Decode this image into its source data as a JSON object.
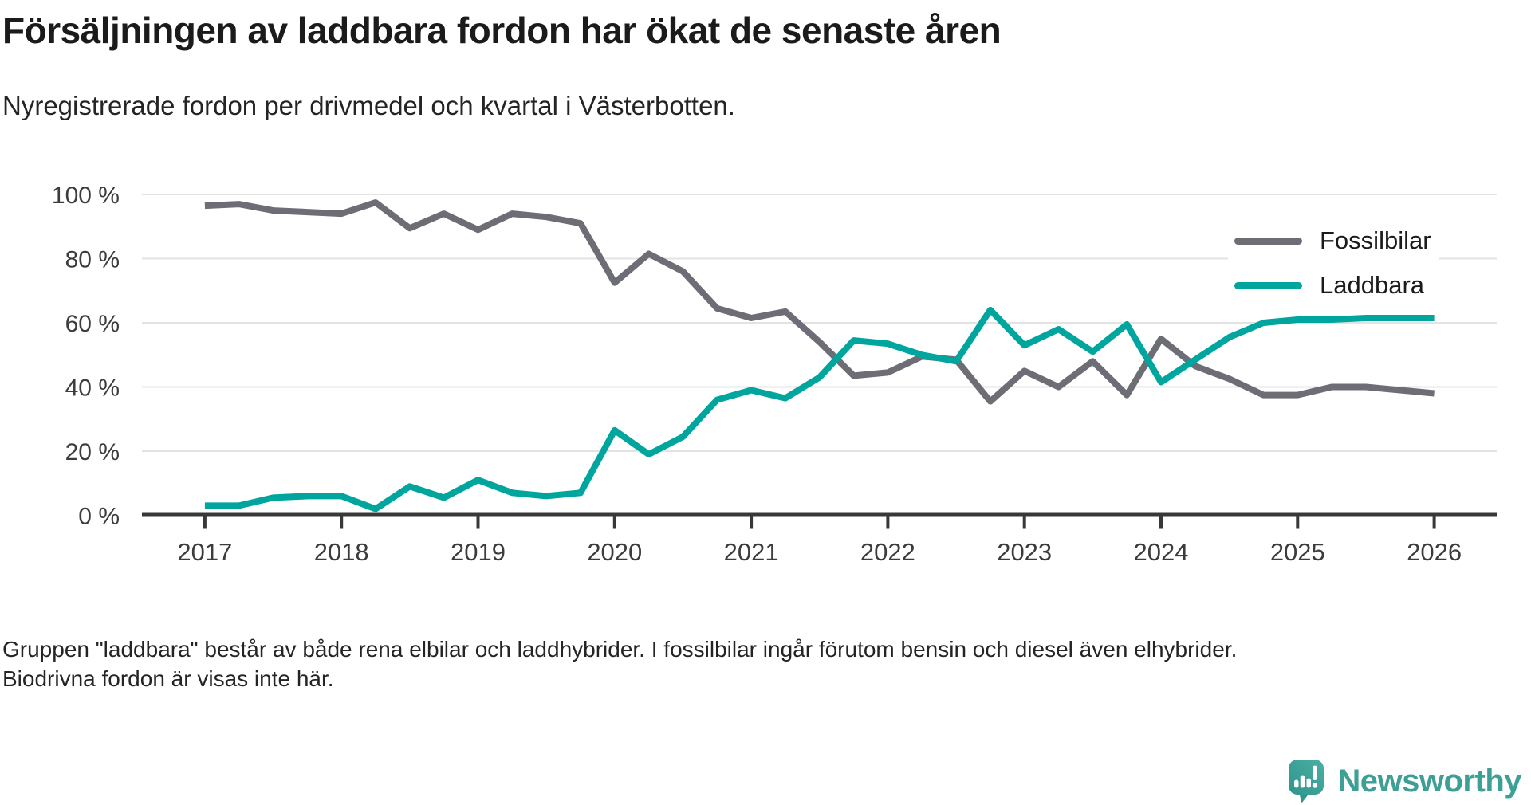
{
  "page": {
    "title": "Försäljningen av laddbara fordon har ökat de senaste åren",
    "subtitle": "Nyregistrerade fordon per drivmedel och kvartal i Västerbotten.",
    "footnote": "Gruppen \"laddbara\" består av både rena elbilar och laddhybrider. I fossilbilar ingår förutom bensin och diesel även elhybrider. Biodrivna fordon är visas inte här."
  },
  "brand": {
    "name": "Newsworthy",
    "logo_icon": "speech-bubble-bar-chart-exclamation-icon",
    "text_color": "#3E9F97",
    "icon_color_top": "#4BAEA4",
    "icon_color_bottom": "#2F958D"
  },
  "chart_data": {
    "type": "line",
    "title": "Försäljningen av laddbara fordon har ökat de senaste åren",
    "subtitle": "Nyregistrerade fordon per drivmedel och kvartal i Västerbotten.",
    "unit": "percent",
    "x_frequency": "quarterly",
    "x_start": "2017 Q1",
    "x_end": "2026 Q1",
    "x_tick_labels": [
      "2017",
      "2018",
      "2019",
      "2020",
      "2021",
      "2022",
      "2023",
      "2024",
      "2025",
      "2026"
    ],
    "y_tick_labels": [
      "0 %",
      "20 %",
      "40 %",
      "60 %",
      "80 %",
      "100 %"
    ],
    "y_tick_values": [
      0,
      20,
      40,
      60,
      80,
      100
    ],
    "ylim": [
      0,
      100
    ],
    "grid": true,
    "legend_position": "upper right",
    "series": [
      {
        "name": "Fossilbilar",
        "color": "#6D6D76",
        "values": [
          96.5,
          97,
          95,
          94.5,
          94,
          97.5,
          89.5,
          94,
          89,
          94,
          93,
          91,
          72.5,
          81.5,
          76,
          64.5,
          61.5,
          63.5,
          54,
          43.5,
          44.5,
          49.5,
          48.5,
          35.5,
          45,
          40,
          48,
          37.5,
          55,
          46.5,
          42.5,
          37.5,
          37.5,
          40,
          40,
          39,
          38
        ]
      },
      {
        "name": "Laddbara",
        "color": "#00A69D",
        "values": [
          3,
          3,
          5.5,
          6,
          6,
          2,
          9,
          5.5,
          11,
          7,
          6,
          7,
          26.5,
          19,
          24.5,
          36,
          39,
          36.5,
          43,
          54.5,
          53.5,
          50,
          48,
          64,
          53,
          58,
          51,
          59.5,
          41.5,
          48.5,
          55.5,
          60,
          61,
          61,
          61.5,
          61.5,
          61.5
        ]
      }
    ]
  }
}
